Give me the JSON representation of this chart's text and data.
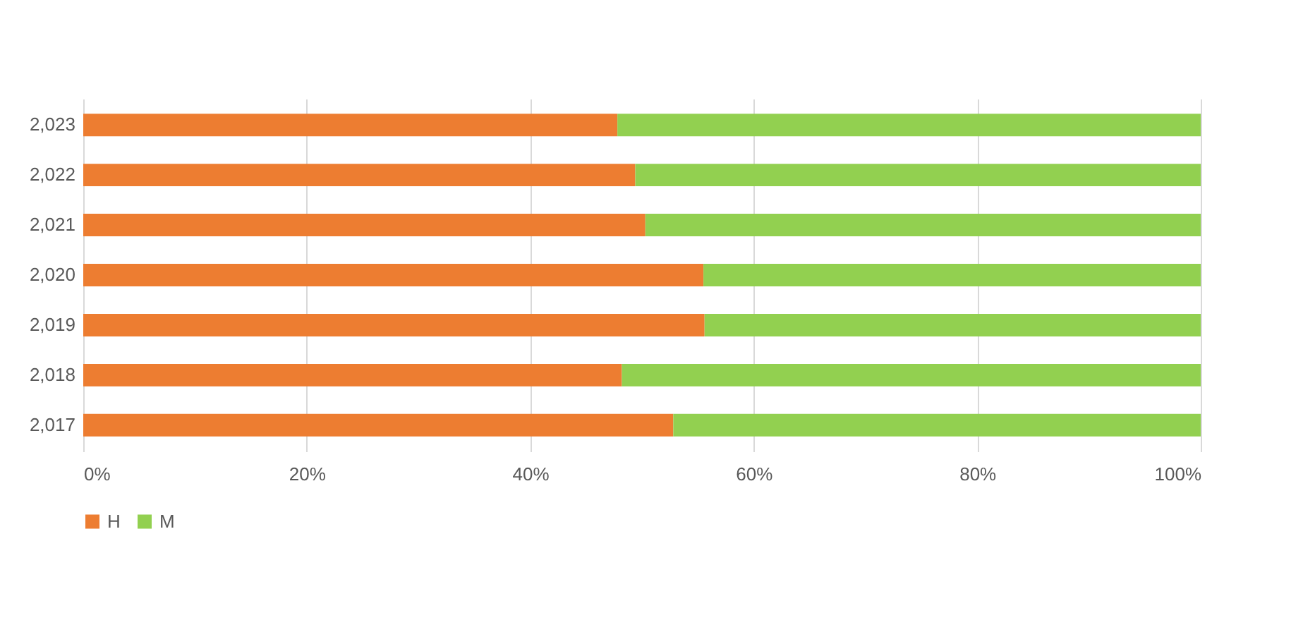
{
  "chart_data": {
    "type": "bar",
    "orientation": "horizontal",
    "stacked": true,
    "categories": [
      "2,023",
      "2,022",
      "2,021",
      "2,020",
      "2,019",
      "2,018",
      "2,017"
    ],
    "series": [
      {
        "name": "H",
        "color": "#ed7d31",
        "values": [
          47.8,
          49.4,
          50.3,
          55.5,
          55.6,
          48.2,
          52.8
        ]
      },
      {
        "name": "M",
        "color": "#92d050",
        "values": [
          52.2,
          50.6,
          49.7,
          44.5,
          44.4,
          51.8,
          47.2
        ]
      }
    ],
    "xlim": [
      0,
      100
    ],
    "xticks": [
      {
        "value": 0,
        "label": "0%"
      },
      {
        "value": 20,
        "label": "20%"
      },
      {
        "value": 40,
        "label": "40%"
      },
      {
        "value": 60,
        "label": "60%"
      },
      {
        "value": 80,
        "label": "80%"
      },
      {
        "value": 100,
        "label": "100%"
      }
    ],
    "grid": "x",
    "legend": "bottom"
  }
}
